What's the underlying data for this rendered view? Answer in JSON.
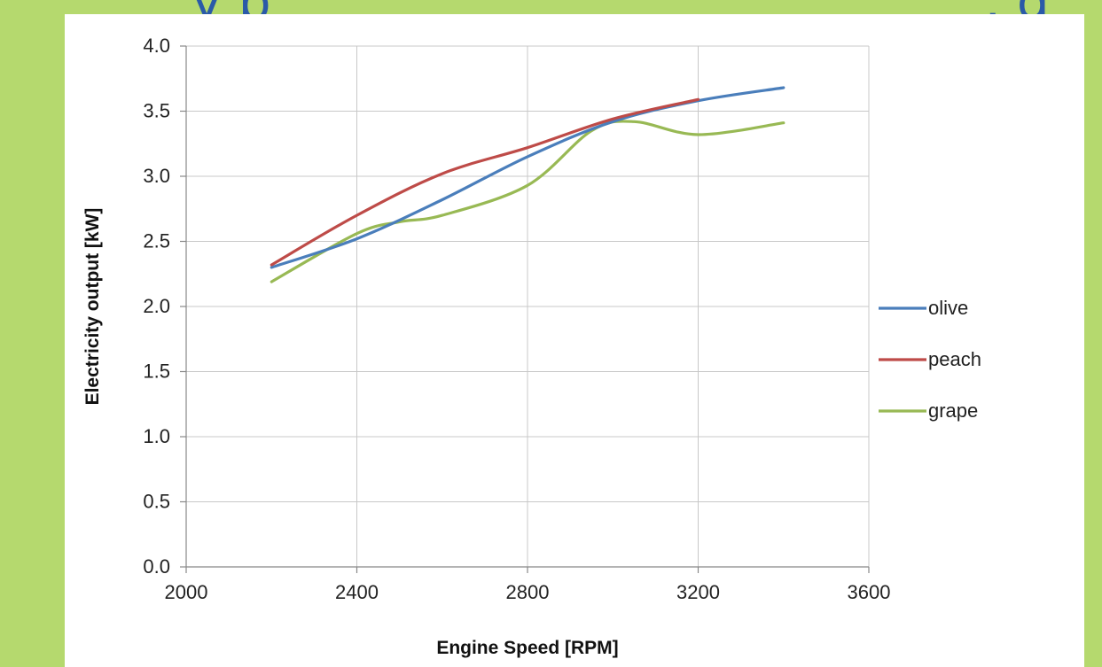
{
  "page": {
    "title_fragment_left": "y p",
    "title_fragment_right": ", g",
    "background_color": "#b5d96e",
    "title_color": "#2a5aa8"
  },
  "chart_data": {
    "type": "line",
    "title": "",
    "xlabel": "Engine Speed [RPM]",
    "ylabel": "Electricity output [kW]",
    "xlim": [
      2000,
      3600
    ],
    "ylim": [
      0.0,
      4.0
    ],
    "x_ticks": [
      2000,
      2400,
      2800,
      3200,
      3600
    ],
    "x_tick_labels": [
      "2000",
      "2400",
      "2800",
      "3200",
      "3600"
    ],
    "y_ticks": [
      0.0,
      0.5,
      1.0,
      1.5,
      2.0,
      2.5,
      3.0,
      3.5,
      4.0
    ],
    "y_tick_labels": [
      "0.0",
      "0.5",
      "1.0",
      "1.5",
      "2.0",
      "2.5",
      "3.0",
      "3.5",
      "4.0"
    ],
    "grid": true,
    "legend_position": "right",
    "series": [
      {
        "name": "olive",
        "color": "#4a7ebb",
        "points": [
          [
            2200,
            2.3
          ],
          [
            2400,
            2.52
          ],
          [
            2600,
            2.82
          ],
          [
            2800,
            3.15
          ],
          [
            3000,
            3.42
          ],
          [
            3200,
            3.58
          ],
          [
            3400,
            3.68
          ]
        ]
      },
      {
        "name": "peach",
        "color": "#be4b48",
        "points": [
          [
            2200,
            2.32
          ],
          [
            2400,
            2.7
          ],
          [
            2600,
            3.02
          ],
          [
            2800,
            3.22
          ],
          [
            3000,
            3.44
          ],
          [
            3200,
            3.59
          ]
        ]
      },
      {
        "name": "grape",
        "color": "#98b954",
        "points": [
          [
            2200,
            2.19
          ],
          [
            2400,
            2.56
          ],
          [
            2500,
            2.65
          ],
          [
            2600,
            2.7
          ],
          [
            2800,
            2.93
          ],
          [
            2950,
            3.35
          ],
          [
            3050,
            3.42
          ],
          [
            3200,
            3.32
          ],
          [
            3400,
            3.41
          ]
        ]
      }
    ]
  }
}
